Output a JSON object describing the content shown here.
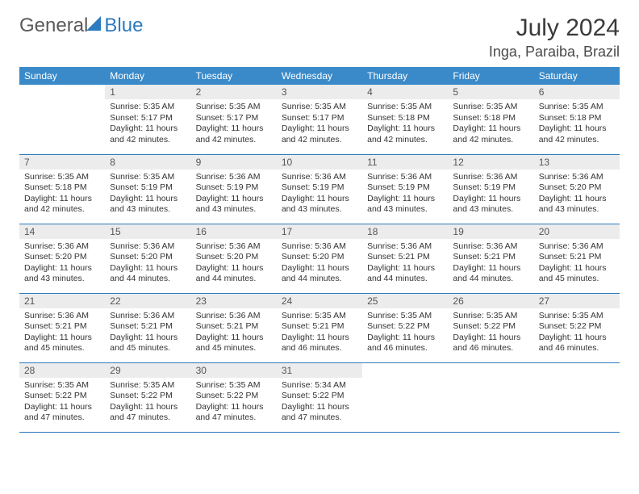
{
  "logo": {
    "text1": "General",
    "text2": "Blue"
  },
  "title": "July 2024",
  "location": "Inga, Paraiba, Brazil",
  "colors": {
    "header_bg": "#3a8ac9",
    "header_text": "#ffffff",
    "daynum_bg": "#ececec",
    "rule": "#2a7bbf",
    "body_bg": "#ffffff"
  },
  "fonts": {
    "title_size": 30,
    "location_size": 18,
    "th_size": 12,
    "cell_size": 10.5
  },
  "weekdays": [
    "Sunday",
    "Monday",
    "Tuesday",
    "Wednesday",
    "Thursday",
    "Friday",
    "Saturday"
  ],
  "weeks": [
    [
      null,
      {
        "n": "1",
        "sr": "5:35 AM",
        "ss": "5:17 PM",
        "dl": "11 hours and 42 minutes."
      },
      {
        "n": "2",
        "sr": "5:35 AM",
        "ss": "5:17 PM",
        "dl": "11 hours and 42 minutes."
      },
      {
        "n": "3",
        "sr": "5:35 AM",
        "ss": "5:17 PM",
        "dl": "11 hours and 42 minutes."
      },
      {
        "n": "4",
        "sr": "5:35 AM",
        "ss": "5:18 PM",
        "dl": "11 hours and 42 minutes."
      },
      {
        "n": "5",
        "sr": "5:35 AM",
        "ss": "5:18 PM",
        "dl": "11 hours and 42 minutes."
      },
      {
        "n": "6",
        "sr": "5:35 AM",
        "ss": "5:18 PM",
        "dl": "11 hours and 42 minutes."
      }
    ],
    [
      {
        "n": "7",
        "sr": "5:35 AM",
        "ss": "5:18 PM",
        "dl": "11 hours and 42 minutes."
      },
      {
        "n": "8",
        "sr": "5:35 AM",
        "ss": "5:19 PM",
        "dl": "11 hours and 43 minutes."
      },
      {
        "n": "9",
        "sr": "5:36 AM",
        "ss": "5:19 PM",
        "dl": "11 hours and 43 minutes."
      },
      {
        "n": "10",
        "sr": "5:36 AM",
        "ss": "5:19 PM",
        "dl": "11 hours and 43 minutes."
      },
      {
        "n": "11",
        "sr": "5:36 AM",
        "ss": "5:19 PM",
        "dl": "11 hours and 43 minutes."
      },
      {
        "n": "12",
        "sr": "5:36 AM",
        "ss": "5:19 PM",
        "dl": "11 hours and 43 minutes."
      },
      {
        "n": "13",
        "sr": "5:36 AM",
        "ss": "5:20 PM",
        "dl": "11 hours and 43 minutes."
      }
    ],
    [
      {
        "n": "14",
        "sr": "5:36 AM",
        "ss": "5:20 PM",
        "dl": "11 hours and 43 minutes."
      },
      {
        "n": "15",
        "sr": "5:36 AM",
        "ss": "5:20 PM",
        "dl": "11 hours and 44 minutes."
      },
      {
        "n": "16",
        "sr": "5:36 AM",
        "ss": "5:20 PM",
        "dl": "11 hours and 44 minutes."
      },
      {
        "n": "17",
        "sr": "5:36 AM",
        "ss": "5:20 PM",
        "dl": "11 hours and 44 minutes."
      },
      {
        "n": "18",
        "sr": "5:36 AM",
        "ss": "5:21 PM",
        "dl": "11 hours and 44 minutes."
      },
      {
        "n": "19",
        "sr": "5:36 AM",
        "ss": "5:21 PM",
        "dl": "11 hours and 44 minutes."
      },
      {
        "n": "20",
        "sr": "5:36 AM",
        "ss": "5:21 PM",
        "dl": "11 hours and 45 minutes."
      }
    ],
    [
      {
        "n": "21",
        "sr": "5:36 AM",
        "ss": "5:21 PM",
        "dl": "11 hours and 45 minutes."
      },
      {
        "n": "22",
        "sr": "5:36 AM",
        "ss": "5:21 PM",
        "dl": "11 hours and 45 minutes."
      },
      {
        "n": "23",
        "sr": "5:36 AM",
        "ss": "5:21 PM",
        "dl": "11 hours and 45 minutes."
      },
      {
        "n": "24",
        "sr": "5:35 AM",
        "ss": "5:21 PM",
        "dl": "11 hours and 46 minutes."
      },
      {
        "n": "25",
        "sr": "5:35 AM",
        "ss": "5:22 PM",
        "dl": "11 hours and 46 minutes."
      },
      {
        "n": "26",
        "sr": "5:35 AM",
        "ss": "5:22 PM",
        "dl": "11 hours and 46 minutes."
      },
      {
        "n": "27",
        "sr": "5:35 AM",
        "ss": "5:22 PM",
        "dl": "11 hours and 46 minutes."
      }
    ],
    [
      {
        "n": "28",
        "sr": "5:35 AM",
        "ss": "5:22 PM",
        "dl": "11 hours and 47 minutes."
      },
      {
        "n": "29",
        "sr": "5:35 AM",
        "ss": "5:22 PM",
        "dl": "11 hours and 47 minutes."
      },
      {
        "n": "30",
        "sr": "5:35 AM",
        "ss": "5:22 PM",
        "dl": "11 hours and 47 minutes."
      },
      {
        "n": "31",
        "sr": "5:34 AM",
        "ss": "5:22 PM",
        "dl": "11 hours and 47 minutes."
      },
      null,
      null,
      null
    ]
  ],
  "labels": {
    "sunrise": "Sunrise:",
    "sunset": "Sunset:",
    "daylight": "Daylight:"
  }
}
